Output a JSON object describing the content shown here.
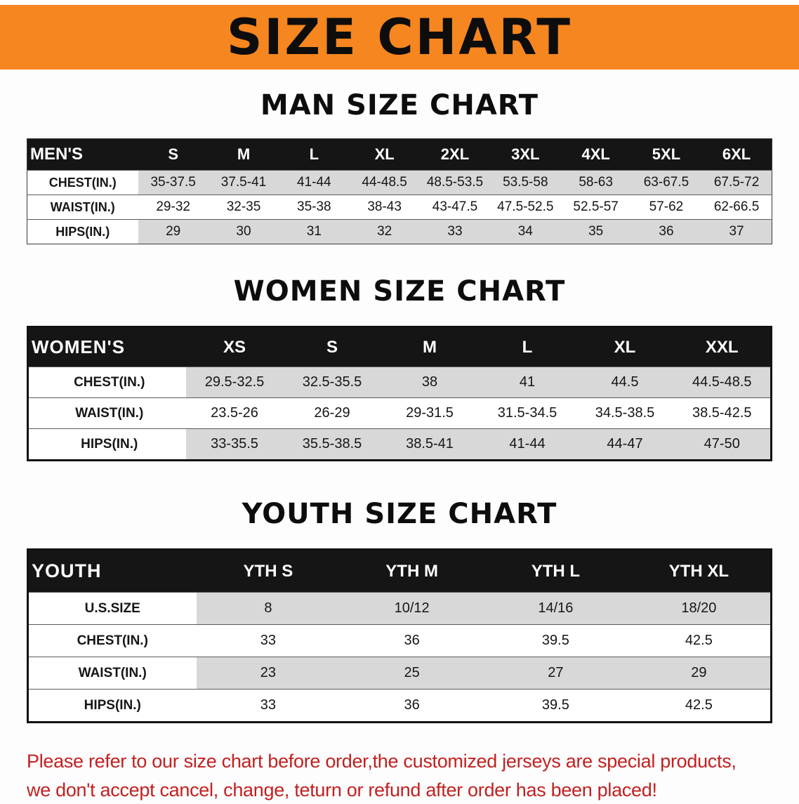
{
  "banner": {
    "title": "SIZE CHART"
  },
  "men": {
    "heading": "MAN SIZE CHART",
    "header": [
      "MEN'S",
      "S",
      "M",
      "L",
      "XL",
      "2XL",
      "3XL",
      "4XL",
      "5XL",
      "6XL"
    ],
    "rows": [
      [
        "CHEST(IN.)",
        "35-37.5",
        "37.5-41",
        "41-44",
        "44-48.5",
        "48.5-53.5",
        "53.5-58",
        "58-63",
        "63-67.5",
        "67.5-72"
      ],
      [
        "WAIST(IN.)",
        "29-32",
        "32-35",
        "35-38",
        "38-43",
        "43-47.5",
        "47.5-52.5",
        "52.5-57",
        "57-62",
        "62-66.5"
      ],
      [
        "HIPS(IN.)",
        "29",
        "30",
        "31",
        "32",
        "33",
        "34",
        "35",
        "36",
        "37"
      ]
    ]
  },
  "women": {
    "heading": "WOMEN SIZE CHART",
    "header": [
      "WOMEN'S",
      "XS",
      "S",
      "M",
      "L",
      "XL",
      "XXL"
    ],
    "rows": [
      [
        "CHEST(IN.)",
        "29.5-32.5",
        "32.5-35.5",
        "38",
        "41",
        "44.5",
        "44.5-48.5"
      ],
      [
        "WAIST(IN.)",
        "23.5-26",
        "26-29",
        "29-31.5",
        "31.5-34.5",
        "34.5-38.5",
        "38.5-42.5"
      ],
      [
        "HIPS(IN.)",
        "33-35.5",
        "35.5-38.5",
        "38.5-41",
        "41-44",
        "44-47",
        "47-50"
      ]
    ]
  },
  "youth": {
    "heading": "YOUTH SIZE CHART",
    "header": [
      "YOUTH",
      "YTH S",
      "YTH M",
      "YTH L",
      "YTH XL"
    ],
    "rows": [
      [
        "U.S.SIZE",
        "8",
        "10/12",
        "14/16",
        "18/20"
      ],
      [
        "CHEST(IN.)",
        "33",
        "36",
        "39.5",
        "42.5"
      ],
      [
        "WAIST(IN.)",
        "23",
        "25",
        "27",
        "29"
      ],
      [
        "HIPS(IN.)",
        "33",
        "36",
        "39.5",
        "42.5"
      ]
    ]
  },
  "disclaimer": {
    "line1": "Please refer to our size chart before order,the customized jerseys are special products,",
    "line2": "we don't accept cancel, change, teturn or refund after order has been placed!"
  },
  "colors": {
    "banner_orange": "#f6861f",
    "header_black": "#151515",
    "row_gray": "#d8d8d8",
    "disclaimer_red": "#c32020"
  }
}
